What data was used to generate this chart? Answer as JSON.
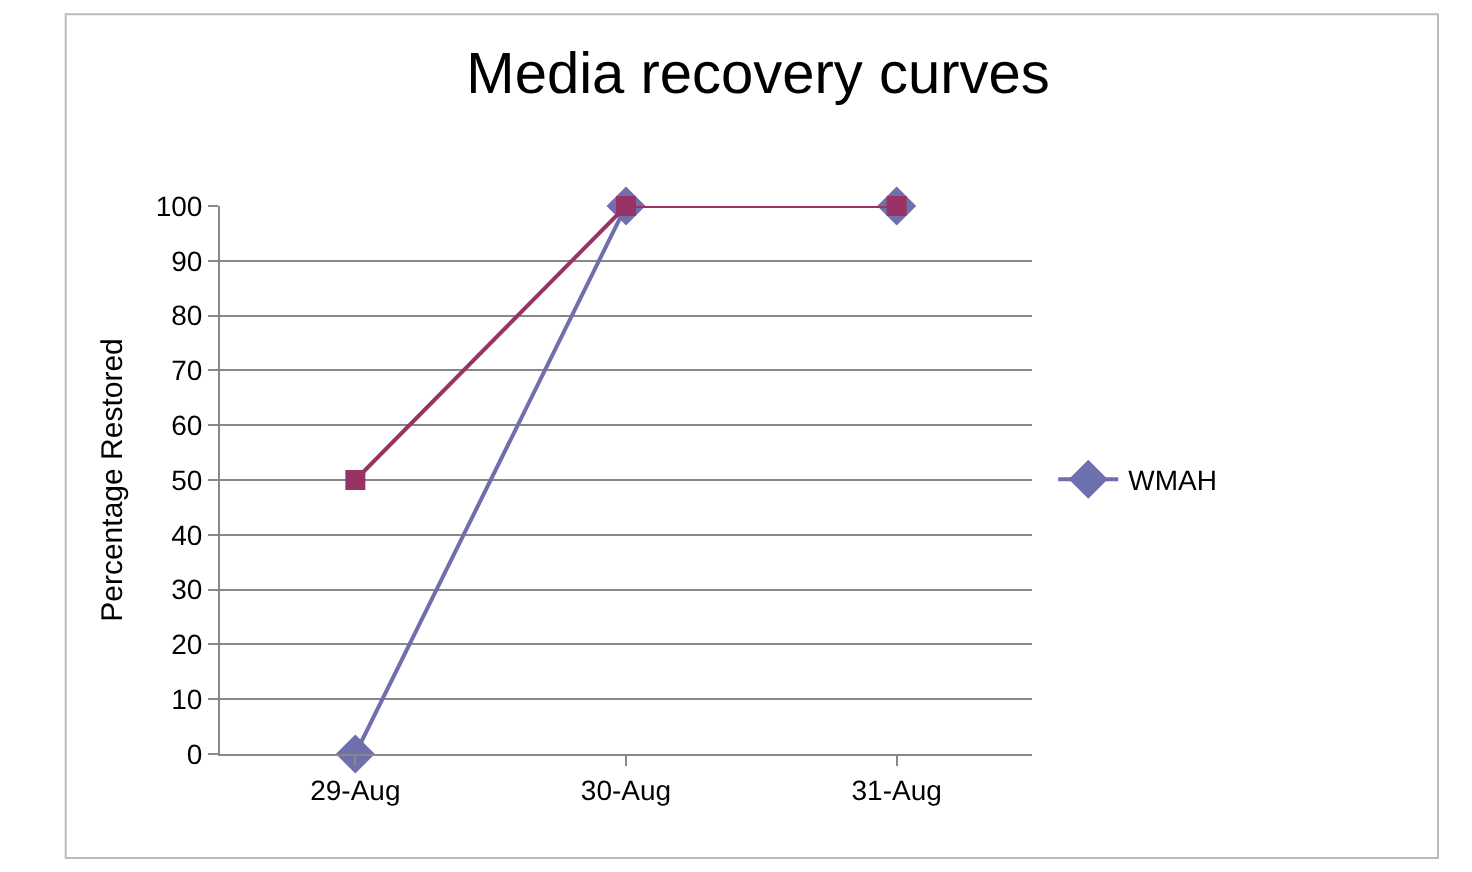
{
  "chart_data": {
    "type": "line",
    "title": "Media recovery curves",
    "ylabel": "Percentage Restored",
    "categories": [
      "29-Aug",
      "30-Aug",
      "31-Aug"
    ],
    "series": [
      {
        "name": "WMAH",
        "color": "#6f6fae",
        "values": [
          0,
          100,
          100
        ],
        "marker": "diamond"
      },
      {
        "color": "#993366",
        "values": [
          50,
          100,
          100
        ],
        "marker": "square"
      }
    ],
    "ylim": [
      0,
      100
    ],
    "yticks": [
      0,
      10,
      20,
      30,
      40,
      50,
      60,
      70,
      80,
      90,
      100
    ],
    "grid": "y",
    "legend": "right",
    "line_style": "solid"
  }
}
